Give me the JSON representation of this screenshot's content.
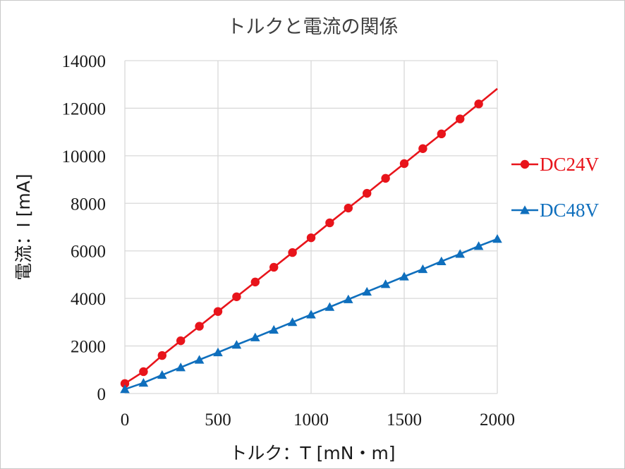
{
  "chart_data": {
    "type": "line",
    "title": "トルクと電流の関係",
    "xlabel": "トルク：T [mN・m]",
    "ylabel": "電流：I [mA]",
    "xlim": [
      0,
      2000
    ],
    "ylim": [
      0,
      14000
    ],
    "x_ticks": [
      "0",
      "500",
      "1000",
      "1500",
      "2000"
    ],
    "y_ticks": [
      "0",
      "2000",
      "4000",
      "6000",
      "8000",
      "10000",
      "12000",
      "14000"
    ],
    "grid": true,
    "legend_position": "right",
    "x": [
      0,
      100,
      200,
      300,
      400,
      500,
      600,
      700,
      800,
      900,
      1000,
      1100,
      1200,
      1300,
      1400,
      1500,
      1600,
      1700,
      1800,
      1900,
      2000
    ],
    "series": [
      {
        "name": "DC24V",
        "color": "#e8141b",
        "marker": "circle",
        "values": [
          420,
          920,
          1600,
          2220,
          2830,
          3450,
          4070,
          4690,
          5310,
          5930,
          6550,
          7180,
          7800,
          8420,
          9050,
          9670,
          10300,
          10920,
          11550,
          12180,
          12820
        ],
        "marker_count": 20
      },
      {
        "name": "DC48V",
        "color": "#0f6fbd",
        "marker": "triangle",
        "values": [
          180,
          450,
          780,
          1100,
          1420,
          1730,
          2050,
          2360,
          2680,
          3000,
          3320,
          3640,
          3960,
          4280,
          4600,
          4920,
          5230,
          5560,
          5870,
          6200,
          6500
        ],
        "marker_count": 21
      }
    ]
  }
}
